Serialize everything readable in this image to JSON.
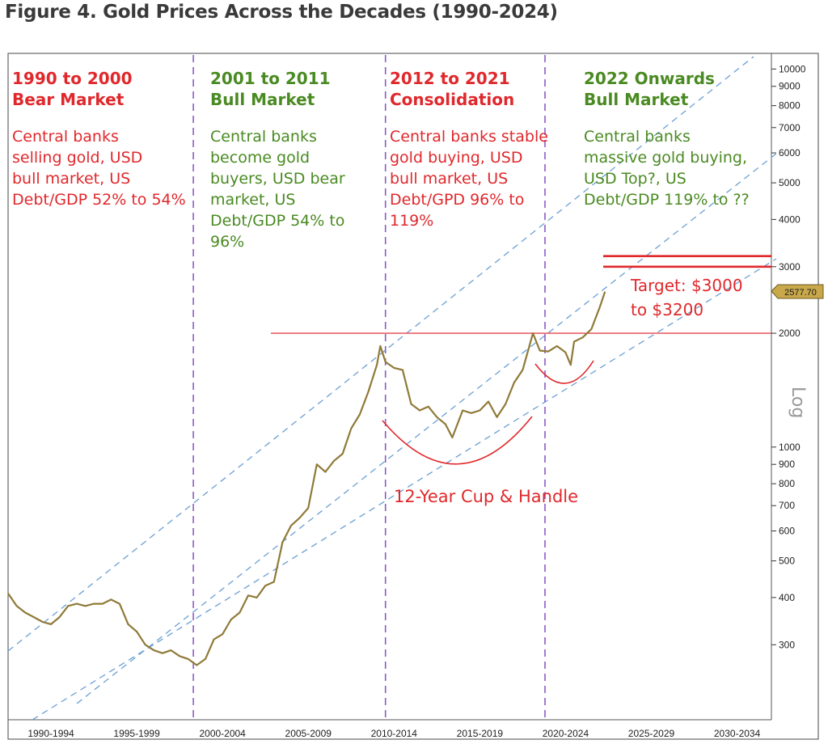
{
  "figure": {
    "title": "Figure 4. Gold Prices Across the Decades (1990-2024)"
  },
  "chart_data": {
    "type": "line",
    "title": "Figure 4. Gold Prices Across the Decades (1990-2024)",
    "ylabel": "Log",
    "y_scale": "log",
    "ylim": [
      190,
      11000
    ],
    "xlim": [
      1990,
      2034.5
    ],
    "y_ticks": [
      300,
      400,
      500,
      600,
      700,
      800,
      900,
      1000,
      2000,
      3000,
      4000,
      5000,
      6000,
      7000,
      8000,
      9000,
      10000
    ],
    "x_ticks": [
      "1990-1994",
      "1995-1999",
      "2000-2004",
      "2005-2009",
      "2010-2014",
      "2015-2019",
      "2020-2024",
      "2025-2029",
      "2030-2034"
    ],
    "last_price_label": "2577.70",
    "series": [
      {
        "color": "#8f7a38",
        "x": [
          1990.0,
          1990.5,
          1991.0,
          1991.5,
          1992.0,
          1992.5,
          1993.0,
          1993.5,
          1994.0,
          1994.5,
          1995.0,
          1995.5,
          1996.0,
          1996.5,
          1997.0,
          1997.5,
          1998.0,
          1998.5,
          1999.0,
          1999.5,
          2000.0,
          2000.5,
          2001.0,
          2001.5,
          2002.0,
          2002.5,
          2003.0,
          2003.5,
          2004.0,
          2004.5,
          2005.0,
          2005.5,
          2006.0,
          2006.5,
          2007.0,
          2007.5,
          2008.0,
          2008.5,
          2009.0,
          2009.5,
          2010.0,
          2010.5,
          2011.0,
          2011.5,
          2011.7,
          2012.0,
          2012.5,
          2013.0,
          2013.5,
          2014.0,
          2014.5,
          2015.0,
          2015.5,
          2015.9,
          2016.5,
          2017.0,
          2017.5,
          2018.0,
          2018.5,
          2019.0,
          2019.5,
          2020.0,
          2020.6,
          2021.0,
          2021.5,
          2022.0,
          2022.5,
          2022.8,
          2023.0,
          2023.5,
          2024.0,
          2024.5,
          2024.8
        ],
        "y": [
          410,
          380,
          365,
          355,
          345,
          340,
          355,
          380,
          385,
          380,
          385,
          385,
          395,
          385,
          340,
          325,
          300,
          290,
          285,
          290,
          280,
          275,
          265,
          275,
          310,
          320,
          350,
          365,
          405,
          400,
          430,
          440,
          560,
          620,
          650,
          690,
          900,
          860,
          920,
          960,
          1120,
          1220,
          1400,
          1650,
          1850,
          1680,
          1620,
          1600,
          1300,
          1250,
          1280,
          1200,
          1150,
          1060,
          1250,
          1230,
          1250,
          1320,
          1200,
          1300,
          1480,
          1600,
          2000,
          1800,
          1790,
          1850,
          1780,
          1650,
          1900,
          1950,
          2050,
          2350,
          2577.7
        ]
      }
    ],
    "eras": [
      {
        "title": "1990 to 2000",
        "subtitle": "Bear Market",
        "color": "#e0282c",
        "desc": [
          "Central banks",
          "selling gold, USD",
          "bull market, US",
          "Debt/GDP 52% to 54%"
        ]
      },
      {
        "title": "2001 to 2011",
        "subtitle": "Bull Market",
        "color": "#4a8a22",
        "desc": [
          "Central banks",
          "become gold",
          "buyers, USD bear",
          "market, US",
          "Debt/GDP 54% to",
          "96%"
        ]
      },
      {
        "title": "2012 to 2021",
        "subtitle": "Consolidation",
        "color": "#e0282c",
        "desc": [
          "Central banks stable",
          "gold buying, USD",
          "bull market, US",
          "Debt/GPD 96% to",
          "119%"
        ]
      },
      {
        "title": "2022 Onwards",
        "subtitle": "Bull Market",
        "color": "#4a8a22",
        "desc": [
          "Central banks",
          "massive gold buying,",
          "USD Top?, US",
          "Debt/GDP 119% to ??"
        ]
      }
    ],
    "era_dividers_x": [
      2000.8,
      2012.0,
      2021.3
    ],
    "horizontal_lines": [
      {
        "y": 2000,
        "label": "resistance",
        "color": "#e8454a"
      },
      {
        "y": 3200,
        "label": "target-upper",
        "color": "#e0282c"
      },
      {
        "y": 3000,
        "label": "target-lower",
        "color": "#e0282c"
      }
    ],
    "annotations": {
      "target_line1": "Target: $3000",
      "target_line2": "to $3200",
      "cup_handle": "12-Year Cup & Handle"
    },
    "colors": {
      "gold_line": "#8f7a38",
      "red": "#e0282c",
      "green": "#4a8a22",
      "channel": "#6a9fd4",
      "divider": "#8a5cc4",
      "price_tag_bg": "#c8a84a"
    }
  }
}
